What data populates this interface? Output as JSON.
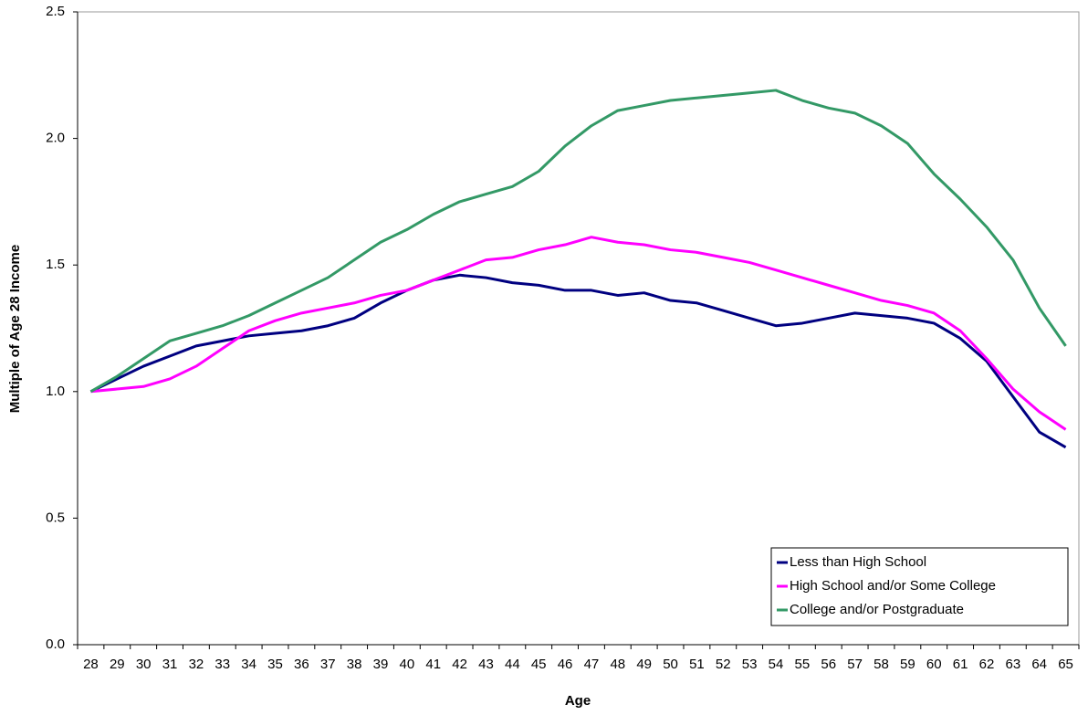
{
  "chart_data": {
    "type": "line",
    "xlabel": "Age",
    "ylabel": "Multiple of Age 28 Income",
    "categories": [
      "28",
      "29",
      "30",
      "31",
      "32",
      "33",
      "34",
      "35",
      "36",
      "37",
      "38",
      "39",
      "40",
      "41",
      "42",
      "43",
      "44",
      "45",
      "46",
      "47",
      "48",
      "49",
      "50",
      "51",
      "52",
      "53",
      "54",
      "55",
      "56",
      "57",
      "58",
      "59",
      "60",
      "61",
      "62",
      "63",
      "64",
      "65"
    ],
    "series": [
      {
        "name": "Less than High School",
        "color": "#000080",
        "values": [
          1.0,
          1.05,
          1.1,
          1.14,
          1.18,
          1.2,
          1.22,
          1.23,
          1.24,
          1.26,
          1.29,
          1.35,
          1.4,
          1.44,
          1.46,
          1.45,
          1.43,
          1.42,
          1.4,
          1.4,
          1.38,
          1.39,
          1.36,
          1.35,
          1.32,
          1.29,
          1.26,
          1.27,
          1.29,
          1.31,
          1.3,
          1.29,
          1.27,
          1.21,
          1.12,
          0.98,
          0.84,
          0.78
        ]
      },
      {
        "name": "High School and/or Some College",
        "color": "#ff00ff",
        "values": [
          1.0,
          1.01,
          1.02,
          1.05,
          1.1,
          1.17,
          1.24,
          1.28,
          1.31,
          1.33,
          1.35,
          1.38,
          1.4,
          1.44,
          1.48,
          1.52,
          1.53,
          1.56,
          1.58,
          1.61,
          1.59,
          1.58,
          1.56,
          1.55,
          1.53,
          1.51,
          1.48,
          1.45,
          1.42,
          1.39,
          1.36,
          1.34,
          1.31,
          1.24,
          1.13,
          1.01,
          0.92,
          0.85
        ]
      },
      {
        "name": "College and/or Postgraduate",
        "color": "#339966",
        "values": [
          1.0,
          1.06,
          1.13,
          1.2,
          1.23,
          1.26,
          1.3,
          1.35,
          1.4,
          1.45,
          1.52,
          1.59,
          1.64,
          1.7,
          1.75,
          1.78,
          1.81,
          1.87,
          1.97,
          2.05,
          2.11,
          2.13,
          2.15,
          2.16,
          2.17,
          2.18,
          2.19,
          2.15,
          2.12,
          2.1,
          2.05,
          1.98,
          1.86,
          1.76,
          1.65,
          1.52,
          1.33,
          1.18
        ]
      }
    ],
    "ylim": [
      0,
      2.5
    ],
    "yticks": [
      {
        "value": 0,
        "label": "0.0"
      },
      0.5,
      {
        "value": 1,
        "label": "1.0"
      },
      1.5,
      {
        "value": 2,
        "label": "2.0"
      },
      2.5
    ],
    "grid": false,
    "legend": "lower right"
  }
}
